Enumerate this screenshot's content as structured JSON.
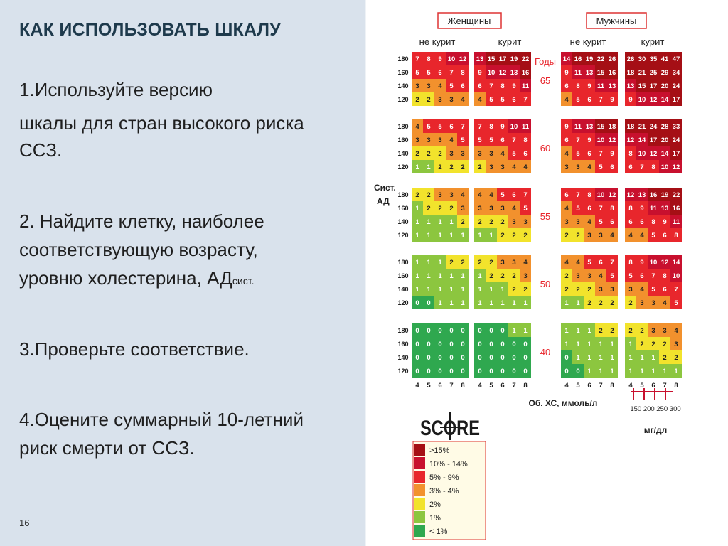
{
  "slide": {
    "title": "КАК ИСПОЛЬЗОВАТЬ ШКАЛУ",
    "steps": [
      "1.Используйте версию",
      "шкалы для стран высокого риска",
      "ССЗ.",
      "2. Найдите клетку, наиболее",
      "соответствующую возрасту,",
      "уровню холестерина, АД",
      "сист.",
      "3.Проверьте соответствие.",
      "4.Оцените суммарный 10-летний",
      "риск смерти от ССЗ."
    ],
    "page_number": "16"
  },
  "chart": {
    "header_women": "Женщины",
    "header_men": "Мужчины",
    "nonsmoker": "не курит",
    "smoker": "курит",
    "years_label": "Годы",
    "sbp_label_1": "Сист.",
    "sbp_label_2": "АД",
    "chol_label": "Об. ХС, ммоль/л",
    "mg_label": "мг/дл",
    "mg_ticks": "150 200 250 300",
    "sbp_values": [
      "180",
      "160",
      "140",
      "120"
    ],
    "chol_values": [
      "4",
      "5",
      "6",
      "7",
      "8"
    ],
    "ages": [
      "65",
      "60",
      "55",
      "50",
      "40"
    ],
    "score_logo": "SCORE",
    "legend": [
      {
        "label": ">15%",
        "color": "#a50f15"
      },
      {
        "label": "10% - 14%",
        "color": "#c8102e"
      },
      {
        "label": "5% - 9%",
        "color": "#e8262c"
      },
      {
        "label": "3% - 4%",
        "color": "#f2912d"
      },
      {
        "label": "2%",
        "color": "#f2e32c"
      },
      {
        "label": "1%",
        "color": "#8cc63f"
      },
      {
        "label": "< 1%",
        "color": "#2fa84f"
      }
    ],
    "blocks": {
      "65": {
        "women_non": [
          [
            7,
            8,
            9,
            10,
            12
          ],
          [
            5,
            5,
            6,
            7,
            8
          ],
          [
            3,
            3,
            4,
            5,
            6
          ],
          [
            2,
            2,
            3,
            3,
            4
          ]
        ],
        "women_smk": [
          [
            13,
            15,
            17,
            19,
            22
          ],
          [
            9,
            10,
            12,
            13,
            16
          ],
          [
            6,
            7,
            8,
            9,
            11
          ],
          [
            4,
            5,
            5,
            6,
            7
          ]
        ],
        "men_non": [
          [
            14,
            16,
            19,
            22,
            26
          ],
          [
            9,
            11,
            13,
            15,
            16
          ],
          [
            6,
            8,
            9,
            11,
            13
          ],
          [
            4,
            5,
            6,
            7,
            9
          ]
        ],
        "men_smk": [
          [
            26,
            30,
            35,
            41,
            47
          ],
          [
            18,
            21,
            25,
            29,
            34
          ],
          [
            13,
            15,
            17,
            20,
            24
          ],
          [
            9,
            10,
            12,
            14,
            17
          ]
        ]
      },
      "60": {
        "women_non": [
          [
            4,
            5,
            5,
            6,
            7
          ],
          [
            3,
            3,
            3,
            4,
            5
          ],
          [
            2,
            2,
            2,
            3,
            3
          ],
          [
            1,
            1,
            2,
            2,
            2
          ]
        ],
        "women_smk": [
          [
            7,
            8,
            9,
            10,
            11
          ],
          [
            5,
            5,
            6,
            7,
            8
          ],
          [
            3,
            3,
            4,
            5,
            6
          ],
          [
            2,
            3,
            3,
            4,
            4
          ]
        ],
        "men_non": [
          [
            9,
            11,
            13,
            15,
            18
          ],
          [
            6,
            7,
            9,
            10,
            12
          ],
          [
            4,
            5,
            6,
            7,
            9
          ],
          [
            3,
            3,
            4,
            5,
            6
          ]
        ],
        "men_smk": [
          [
            18,
            21,
            24,
            28,
            33
          ],
          [
            12,
            14,
            17,
            20,
            24
          ],
          [
            8,
            10,
            12,
            14,
            17
          ],
          [
            6,
            7,
            8,
            10,
            12
          ]
        ]
      },
      "55": {
        "women_non": [
          [
            2,
            2,
            3,
            3,
            4
          ],
          [
            1,
            2,
            2,
            2,
            3
          ],
          [
            1,
            1,
            1,
            1,
            2
          ],
          [
            1,
            1,
            1,
            1,
            1
          ]
        ],
        "women_smk": [
          [
            4,
            4,
            5,
            6,
            7
          ],
          [
            3,
            3,
            3,
            4,
            5
          ],
          [
            2,
            2,
            2,
            3,
            3
          ],
          [
            1,
            1,
            2,
            2,
            2
          ]
        ],
        "men_non": [
          [
            6,
            7,
            8,
            10,
            12
          ],
          [
            4,
            5,
            6,
            7,
            8
          ],
          [
            3,
            3,
            4,
            5,
            6
          ],
          [
            2,
            2,
            3,
            3,
            4
          ]
        ],
        "men_smk": [
          [
            12,
            13,
            16,
            19,
            22
          ],
          [
            8,
            9,
            11,
            13,
            16
          ],
          [
            6,
            6,
            8,
            9,
            11
          ],
          [
            4,
            4,
            5,
            6,
            8
          ]
        ]
      },
      "50": {
        "women_non": [
          [
            1,
            1,
            1,
            2,
            2
          ],
          [
            1,
            1,
            1,
            1,
            1
          ],
          [
            1,
            1,
            1,
            1,
            1
          ],
          [
            0,
            0,
            1,
            1,
            1
          ]
        ],
        "women_smk": [
          [
            2,
            2,
            3,
            3,
            4
          ],
          [
            1,
            2,
            2,
            2,
            3
          ],
          [
            1,
            1,
            1,
            2,
            2
          ],
          [
            1,
            1,
            1,
            1,
            1
          ]
        ],
        "men_non": [
          [
            4,
            4,
            5,
            6,
            7
          ],
          [
            2,
            3,
            3,
            4,
            5
          ],
          [
            2,
            2,
            2,
            3,
            3
          ],
          [
            1,
            1,
            2,
            2,
            2
          ]
        ],
        "men_smk": [
          [
            8,
            9,
            10,
            12,
            14
          ],
          [
            5,
            6,
            7,
            8,
            10
          ],
          [
            3,
            4,
            5,
            6,
            7
          ],
          [
            2,
            3,
            3,
            4,
            5
          ]
        ]
      },
      "40": {
        "women_non": [
          [
            0,
            0,
            0,
            0,
            0
          ],
          [
            0,
            0,
            0,
            0,
            0
          ],
          [
            0,
            0,
            0,
            0,
            0
          ],
          [
            0,
            0,
            0,
            0,
            0
          ]
        ],
        "women_smk": [
          [
            0,
            0,
            0,
            1,
            1
          ],
          [
            0,
            0,
            0,
            0,
            0
          ],
          [
            0,
            0,
            0,
            0,
            0
          ],
          [
            0,
            0,
            0,
            0,
            0
          ]
        ],
        "men_non": [
          [
            1,
            1,
            1,
            2,
            2
          ],
          [
            1,
            1,
            1,
            1,
            1
          ],
          [
            0,
            1,
            1,
            1,
            1
          ],
          [
            0,
            0,
            1,
            1,
            1
          ]
        ],
        "men_smk": [
          [
            2,
            2,
            3,
            3,
            4
          ],
          [
            1,
            2,
            2,
            2,
            3
          ],
          [
            1,
            1,
            1,
            2,
            2
          ],
          [
            1,
            1,
            1,
            1,
            1
          ]
        ]
      }
    }
  }
}
